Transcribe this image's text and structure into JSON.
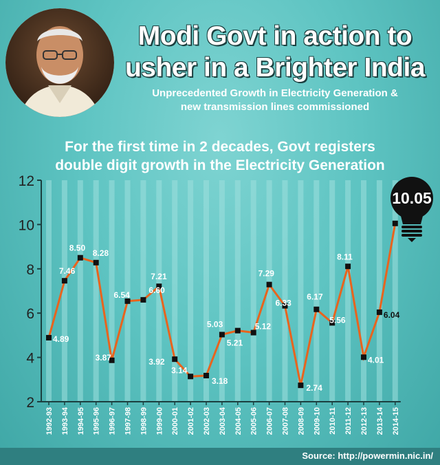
{
  "header": {
    "title_line1": "Modi Govt in action to",
    "title_line2": "usher in a Brighter India",
    "subtitle_line1": "Unprecedented Growth in Electricity Generation &",
    "subtitle_line2": "new transmission lines commissioned"
  },
  "footer": {
    "source": "Source: http://powermin.nic.in/"
  },
  "colors": {
    "line": "#e8641e",
    "marker": "#111111",
    "background": "#5ec4c2",
    "footer": "#2f7f80"
  },
  "chart_data": {
    "type": "line",
    "title_line1": "For the first time in 2 decades, Govt registers",
    "title_line2": "double digit growth in the Electricity Generation",
    "categories": [
      "1992-93",
      "1993-94",
      "1994-95",
      "1995-96",
      "1996-97",
      "1997-98",
      "1998-99",
      "1999-00",
      "2000-01",
      "2001-02",
      "2002-03",
      "2003-04",
      "2004-05",
      "2005-06",
      "2006-07",
      "2007-08",
      "2008-09",
      "2009-10",
      "2010-11",
      "2011-12",
      "2012-13",
      "2013-14",
      "2014-15"
    ],
    "values": [
      4.89,
      7.46,
      8.5,
      8.28,
      3.87,
      6.54,
      6.6,
      7.21,
      3.92,
      3.14,
      3.18,
      5.03,
      5.21,
      5.12,
      7.29,
      6.33,
      2.74,
      6.17,
      5.56,
      8.11,
      4.01,
      6.04,
      10.05
    ],
    "labels": [
      "4.89",
      "7.46",
      "8.50",
      "8.28",
      "3.87",
      "6.54",
      "6.60",
      "7.21",
      "3.92",
      "3.14",
      "3.18",
      "5.03",
      "5.21",
      "5.12",
      "7.29",
      "6.33",
      "2.74",
      "6.17",
      "5.56",
      "8.11",
      "4.01",
      "6.04",
      "10.05"
    ],
    "yticks": [
      "2",
      "4",
      "6",
      "8",
      "10",
      "12"
    ],
    "ylim": [
      2,
      12
    ],
    "grid": "vertical",
    "highlight": {
      "label": "10.05",
      "icon": "light-bulb-icon"
    }
  }
}
